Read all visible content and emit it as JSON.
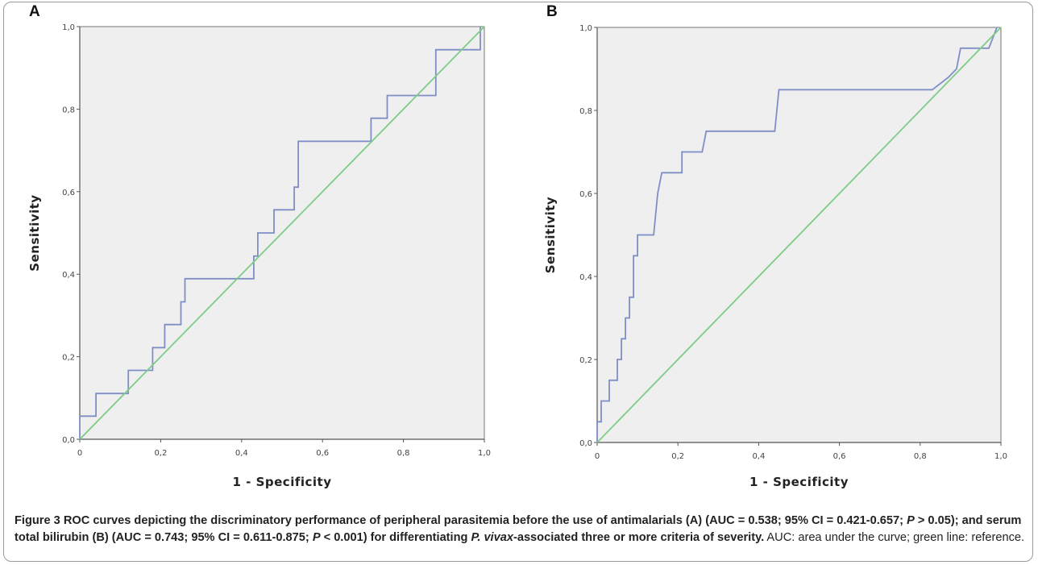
{
  "figure": {
    "caption": {
      "label": "Figure 3",
      "text_a": "ROC curves depicting the discriminatory performance of peripheral parasitemia before the use of antimalarials (A) (AUC = 0.538; 95% CI = 0.421-0.657; ",
      "p_a": "P",
      "text_b": " > 0.05); and serum total bilirubin (B) (AUC = 0.743; 95% CI = 0.611-0.875; ",
      "p_b": "P",
      "text_c": " < 0.001) for differentiating ",
      "species": "P. vivax",
      "text_d": "-associated three or more criteria of severity.",
      "note": " AUC: area under the curve; green line: reference."
    }
  },
  "colors": {
    "roc": "#7f8fc6",
    "reference": "#7dcc86",
    "plot_bg": "#efefef",
    "axis": "#555555"
  },
  "chart_data": [
    {
      "type": "line",
      "panel": "A",
      "xlabel": "1 - Specificity",
      "ylabel": "Sensitivity",
      "xlim": [
        0,
        1
      ],
      "ylim": [
        0,
        1
      ],
      "x_ticks": [
        "0",
        "0,2",
        "0,4",
        "0,6",
        "0,8",
        "1,0"
      ],
      "y_ticks": [
        "0,0",
        "0,2",
        "0,4",
        "0,6",
        "0,8",
        "1,0"
      ],
      "grid": false,
      "series": [
        {
          "role": "roc",
          "x": [
            0.0,
            0.0,
            0.04,
            0.04,
            0.12,
            0.12,
            0.18,
            0.18,
            0.21,
            0.21,
            0.25,
            0.25,
            0.26,
            0.26,
            0.43,
            0.43,
            0.44,
            0.44,
            0.48,
            0.48,
            0.53,
            0.53,
            0.54,
            0.54,
            0.72,
            0.72,
            0.76,
            0.76,
            0.88,
            0.88,
            0.99,
            0.99
          ],
          "y": [
            0.0,
            0.056,
            0.056,
            0.111,
            0.111,
            0.167,
            0.167,
            0.222,
            0.222,
            0.278,
            0.278,
            0.333,
            0.333,
            0.389,
            0.389,
            0.444,
            0.444,
            0.5,
            0.5,
            0.556,
            0.556,
            0.611,
            0.611,
            0.722,
            0.722,
            0.778,
            0.778,
            0.833,
            0.833,
            0.944,
            0.944,
            1.0
          ]
        },
        {
          "role": "reference",
          "x": [
            0,
            1
          ],
          "y": [
            0,
            1
          ]
        }
      ]
    },
    {
      "type": "line",
      "panel": "B",
      "xlabel": "1 - Specificity",
      "ylabel": "Sensitivity",
      "xlim": [
        0,
        1
      ],
      "ylim": [
        0,
        1
      ],
      "x_ticks": [
        "0",
        "0,2",
        "0,4",
        "0,6",
        "0,8",
        "1,0"
      ],
      "y_ticks": [
        "0,0",
        "0,2",
        "0,4",
        "0,6",
        "0,8",
        "1,0"
      ],
      "grid": false,
      "series": [
        {
          "role": "roc",
          "x": [
            0.0,
            0.0,
            0.005,
            0.01,
            0.01,
            0.03,
            0.03,
            0.05,
            0.05,
            0.06,
            0.06,
            0.07,
            0.07,
            0.08,
            0.08,
            0.09,
            0.09,
            0.1,
            0.1,
            0.14,
            0.15,
            0.16,
            0.16,
            0.21,
            0.21,
            0.26,
            0.27,
            0.44,
            0.45,
            0.83,
            0.87,
            0.89,
            0.9,
            0.95,
            0.97,
            0.99
          ],
          "y": [
            0.0,
            0.05,
            0.05,
            0.05,
            0.1,
            0.1,
            0.15,
            0.15,
            0.2,
            0.2,
            0.25,
            0.25,
            0.3,
            0.3,
            0.35,
            0.35,
            0.45,
            0.45,
            0.5,
            0.5,
            0.6,
            0.65,
            0.65,
            0.65,
            0.7,
            0.7,
            0.75,
            0.75,
            0.85,
            0.85,
            0.88,
            0.9,
            0.95,
            0.95,
            0.95,
            1.0
          ]
        },
        {
          "role": "reference",
          "x": [
            0,
            1
          ],
          "y": [
            0,
            1
          ]
        }
      ]
    }
  ]
}
